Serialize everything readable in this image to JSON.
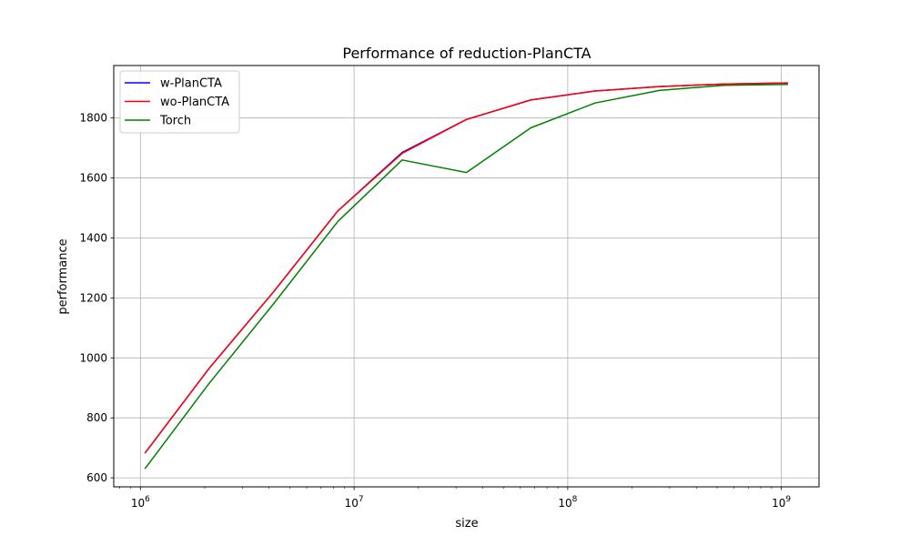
{
  "chart_data": {
    "type": "line",
    "title": "Performance of reduction-PlanCTA",
    "xlabel": "size",
    "ylabel": "performance",
    "xscale": "log",
    "xlim": [
      750000,
      1500000000
    ],
    "ylim": [
      570,
      1975
    ],
    "grid": true,
    "legend_position": "top-left",
    "x": [
      1048576,
      2097152,
      4194304,
      8388608,
      16777216,
      33554432,
      67108864,
      134217728,
      268435456,
      536870912,
      1073741824
    ],
    "y_ticks": [
      600,
      800,
      1000,
      1200,
      1400,
      1600,
      1800
    ],
    "x_ticks": [
      {
        "value": 1000000,
        "base": "10",
        "exp": "6"
      },
      {
        "value": 10000000,
        "base": "10",
        "exp": "7"
      },
      {
        "value": 100000000,
        "base": "10",
        "exp": "8"
      },
      {
        "value": 1000000000,
        "base": "10",
        "exp": "9"
      }
    ],
    "series": [
      {
        "name": "w-PlanCTA",
        "color": "#0000ff",
        "values": [
          682,
          965,
          1220,
          1490,
          1685,
          1795,
          1860,
          1890,
          1905,
          1913,
          1917
        ]
      },
      {
        "name": "wo-PlanCTA",
        "color": "#ff0000",
        "values": [
          682,
          965,
          1220,
          1490,
          1682,
          1795,
          1860,
          1890,
          1905,
          1913,
          1917
        ]
      },
      {
        "name": "Torch",
        "color": "#008000",
        "values": [
          630,
          915,
          1180,
          1455,
          1660,
          1618,
          1767,
          1850,
          1892,
          1909,
          1912
        ]
      }
    ]
  }
}
